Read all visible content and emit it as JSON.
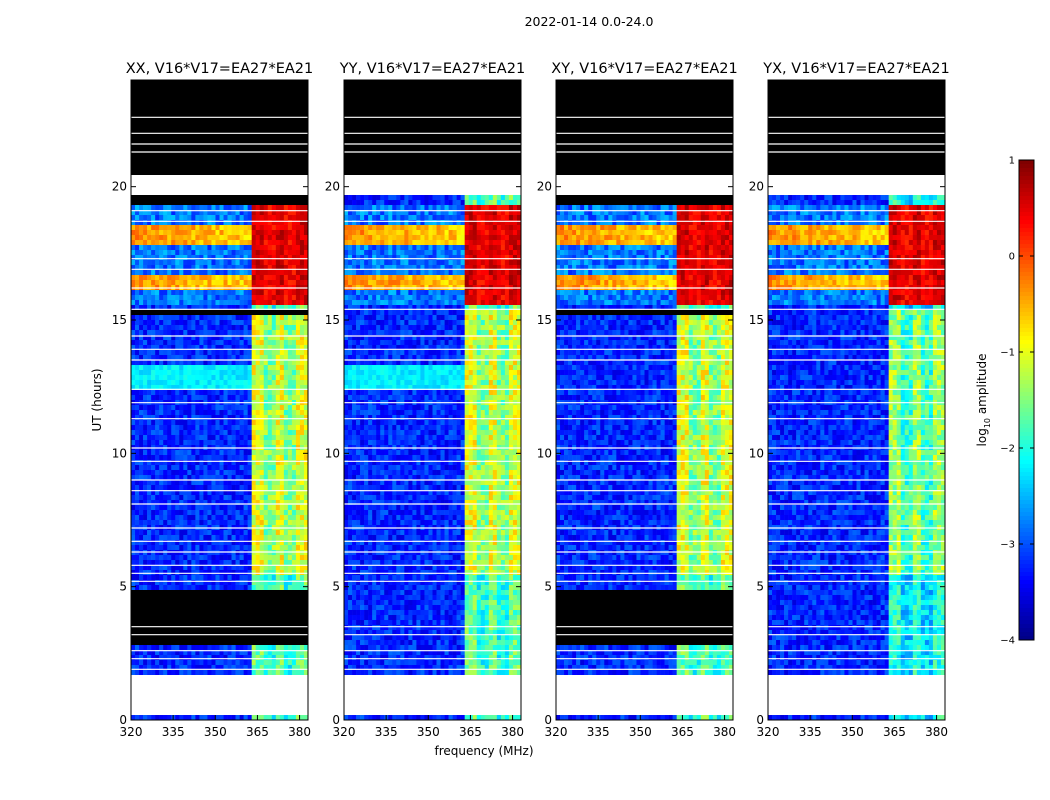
{
  "suptitle": "2022-01-14 0.0-24.0",
  "chart_data": {
    "type": "heatmap",
    "panels": [
      {
        "title": "XX, V16*V17=EA27*EA21",
        "pol": "XX"
      },
      {
        "title": "YY, V16*V17=EA27*EA21",
        "pol": "YY"
      },
      {
        "title": "XY, V16*V17=EA27*EA21",
        "pol": "XY"
      },
      {
        "title": "YX, V16*V17=EA27*EA21",
        "pol": "YX"
      }
    ],
    "xlabel": "frequency (MHz)",
    "ylabel": "UT (hours)",
    "xlim": [
      320,
      383
    ],
    "ylim": [
      0,
      24
    ],
    "xticks": [
      320,
      335,
      350,
      365,
      380
    ],
    "yticks": [
      0,
      5,
      10,
      15,
      20
    ],
    "colorbar": {
      "label_prefix": "log",
      "label_sub": "10",
      "label_suffix": " amplitude",
      "range": [
        -4,
        1
      ],
      "ticks": [
        1,
        0,
        -1,
        -2,
        -3,
        -4
      ],
      "tick_labels": [
        "1",
        "0",
        "−1",
        "−2",
        "−3",
        "−4"
      ]
    },
    "features": {
      "flagged_black_hours": [
        [
          19.3,
          19.6
        ],
        [
          20.5,
          24.0
        ],
        [
          2.9,
          4.85
        ]
      ],
      "no_data_white_hours": [
        [
          19.6,
          20.5
        ],
        [
          0.15,
          1.75
        ]
      ],
      "rfi_band_mhz": [
        363.5,
        382.5
      ],
      "strong_signal_hours": [
        [
          15.5,
          19.3
        ]
      ]
    }
  }
}
